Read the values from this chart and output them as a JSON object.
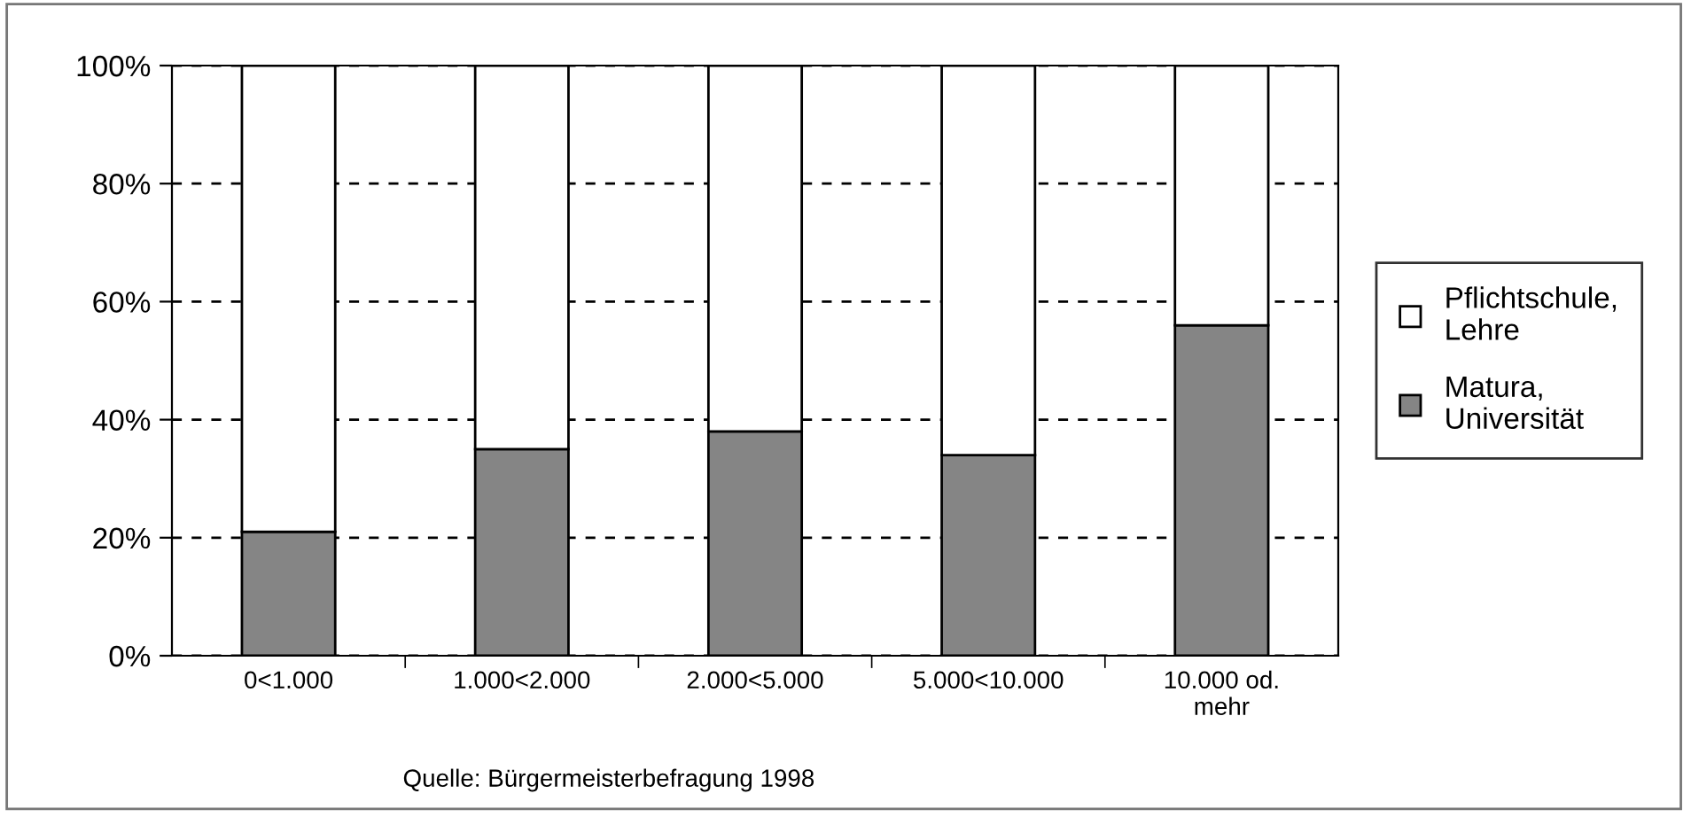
{
  "chart_data": {
    "type": "bar",
    "stacked": true,
    "categories": [
      "0<1.000",
      "1.000<2.000",
      "2.000<5.000",
      "5.000<10.000",
      "10.000 od.\nmehr"
    ],
    "series": [
      {
        "name": "Matura,\nUniversität",
        "color": "#858585",
        "values": [
          21,
          35,
          38,
          34,
          56
        ]
      },
      {
        "name": "Pflichtschule,\nLehre",
        "color": "#ffffff",
        "values": [
          79,
          65,
          62,
          66,
          44
        ]
      }
    ],
    "ylim": [
      0,
      100
    ],
    "yticks": [
      {
        "value": 0,
        "label": "0%"
      },
      {
        "value": 20,
        "label": "20%"
      },
      {
        "value": 40,
        "label": "40%"
      },
      {
        "value": 60,
        "label": "60%"
      },
      {
        "value": 80,
        "label": "80%"
      },
      {
        "value": 100,
        "label": "100%"
      }
    ],
    "grid": "y",
    "line_style": "dashed",
    "legend": "right",
    "annotations": [
      "Quelle: Bürgermeisterbefragung 1998"
    ]
  }
}
